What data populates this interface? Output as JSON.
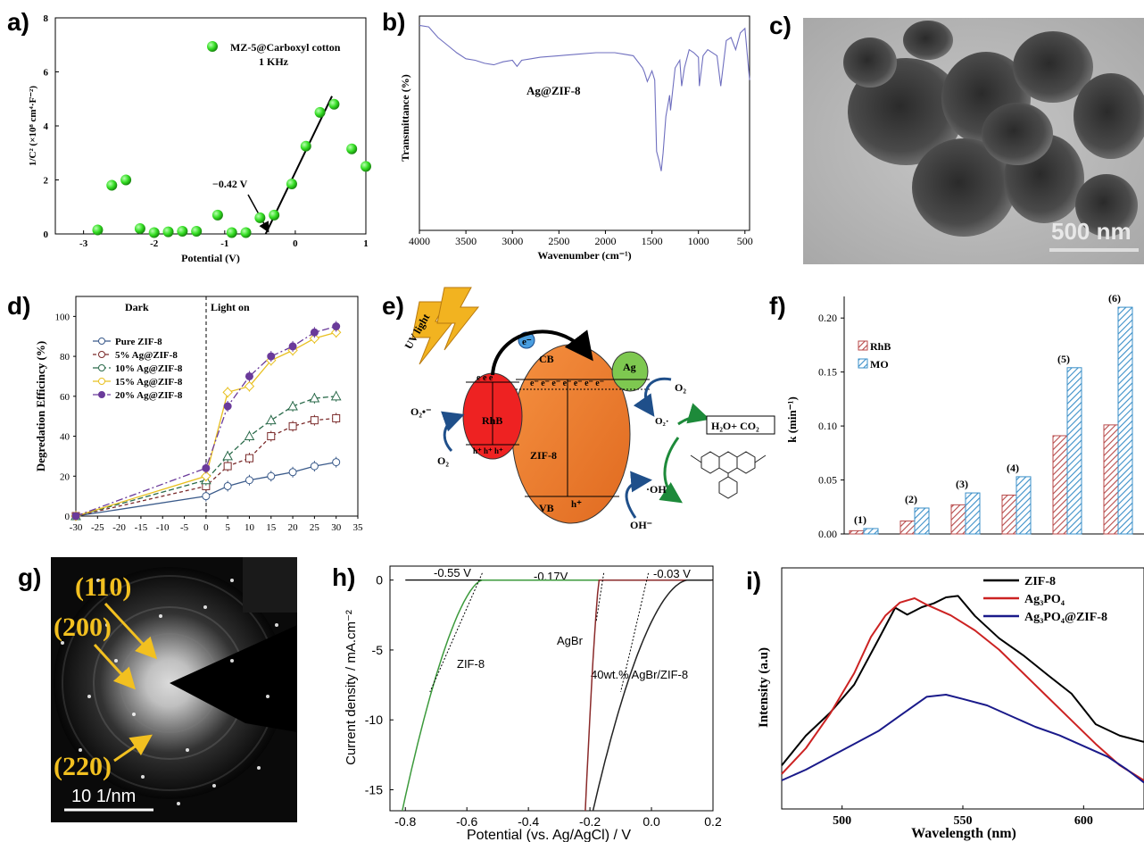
{
  "panel_labels": [
    "a)",
    "b)",
    "c)",
    "d)",
    "e)",
    "f)",
    "g)",
    "h)",
    "i)"
  ],
  "colors": {
    "green_marker": "#33dd22",
    "ftir_line": "#6f6fbf",
    "zif8_orange": "#ee7a30",
    "rhb_red": "#ee2222",
    "ag_green": "#7ec850",
    "uv_yellow": "#f2b320",
    "rhb_bar": "#b84a4a",
    "mo_bar": "#3a8fc8"
  },
  "chart_data": [
    {
      "id": "a",
      "type": "scatter",
      "xlabel": "Potential (V)",
      "ylabel": "1/C² (×10⁸ cm⁴·F⁻²)",
      "xlim": [
        -3.4,
        1
      ],
      "ylim": [
        0,
        8
      ],
      "x_ticks": [
        "-3",
        "-2",
        "-1",
        "0",
        "1"
      ],
      "y_ticks": [
        "0",
        "2",
        "4",
        "6",
        "8"
      ],
      "legend": [
        "MZ-5@Carboxyl cotton",
        "1 KHz"
      ],
      "annotation": "−0.42 V",
      "points": [
        [
          -2.8,
          0.15
        ],
        [
          -2.6,
          1.8
        ],
        [
          -2.4,
          2.0
        ],
        [
          -2.2,
          0.2
        ],
        [
          -2.0,
          0.05
        ],
        [
          -1.8,
          0.08
        ],
        [
          -1.6,
          0.1
        ],
        [
          -1.4,
          0.1
        ],
        [
          -1.1,
          0.7
        ],
        [
          -0.9,
          0.05
        ],
        [
          -0.7,
          0.05
        ],
        [
          -0.5,
          0.6
        ],
        [
          -0.3,
          0.7
        ],
        [
          -0.05,
          1.85
        ],
        [
          0.15,
          3.25
        ],
        [
          0.35,
          4.5
        ],
        [
          0.55,
          4.8
        ],
        [
          0.8,
          3.15
        ],
        [
          1.0,
          2.5
        ]
      ],
      "fit_line": [
        [
          -0.42,
          0
        ],
        [
          0.52,
          5.1
        ]
      ]
    },
    {
      "id": "b",
      "type": "line",
      "xlabel": "Wavenumber (cm⁻¹)",
      "ylabel": "Transmittance (%)",
      "xlim": [
        4000,
        450
      ],
      "x_ticks": [
        "4000",
        "3500",
        "3000",
        "2500",
        "2000",
        "1500",
        "1000",
        "500"
      ],
      "label": "Ag@ZIF-8",
      "x": [
        4000,
        3900,
        3800,
        3700,
        3600,
        3500,
        3400,
        3300,
        3200,
        3150,
        3100,
        3000,
        2950,
        2900,
        2800,
        2700,
        2500,
        2300,
        2100,
        2000,
        1900,
        1800,
        1700,
        1600,
        1580,
        1550,
        1500,
        1470,
        1450,
        1420,
        1400,
        1380,
        1350,
        1310,
        1300,
        1250,
        1200,
        1180,
        1150,
        1100,
        1050,
        1000,
        990,
        950,
        900,
        800,
        760,
        700,
        650,
        600,
        550,
        500,
        450
      ],
      "y": [
        98,
        97,
        90,
        85,
        80,
        76,
        75,
        73,
        72,
        73,
        74,
        75,
        71,
        75,
        76,
        77,
        78,
        79,
        80,
        80,
        80,
        79,
        78,
        70,
        67,
        61,
        68,
        62,
        15,
        8,
        2,
        14,
        38,
        52,
        42,
        70,
        75,
        58,
        70,
        82,
        80,
        77,
        58,
        78,
        82,
        78,
        58,
        88,
        90,
        82,
        93,
        96,
        62
      ]
    },
    {
      "id": "d",
      "type": "line",
      "xlabel": "",
      "ylabel": "Degredation Efficincy (%)",
      "xlim": [
        -30,
        35
      ],
      "ylim": [
        0,
        100
      ],
      "x_ticks": [
        "-30",
        "-25",
        "-20",
        "-15",
        "-10",
        "-5",
        "0",
        "5",
        "10",
        "15",
        "20",
        "25",
        "30",
        "35"
      ],
      "y_ticks": [
        "0",
        "20",
        "40",
        "60",
        "80",
        "100"
      ],
      "annotations": [
        "Dark",
        "Light on"
      ],
      "x": [
        -30,
        0,
        5,
        10,
        15,
        20,
        25,
        30
      ],
      "series": [
        {
          "name": "Pure ZIF-8",
          "color": "#3a5a8a",
          "marker": "circle-open",
          "values": [
            0,
            10,
            15,
            18,
            20,
            22,
            25,
            27
          ]
        },
        {
          "name": "5% Ag@ZIF-8",
          "color": "#7a2a2a",
          "marker": "square-open",
          "values": [
            0,
            15,
            25,
            29,
            40,
            45,
            48,
            49
          ]
        },
        {
          "name": "10% Ag@ZIF-8",
          "color": "#2a6a4a",
          "marker": "triangle-open",
          "values": [
            0,
            18,
            30,
            40,
            48,
            55,
            59,
            60
          ]
        },
        {
          "name": "15% Ag@ZIF-8",
          "color": "#e8c020",
          "marker": "diamond-open",
          "values": [
            0,
            20,
            62,
            65,
            78,
            83,
            89,
            92
          ]
        },
        {
          "name": "20% Ag@ZIF-8",
          "color": "#6a3a9a",
          "marker": "circle-filled",
          "values": [
            0,
            24,
            55,
            70,
            80,
            85,
            92,
            95
          ]
        }
      ]
    },
    {
      "id": "f",
      "type": "bar",
      "ylabel": "k (min⁻¹)",
      "ylim": [
        0,
        0.2
      ],
      "y_ticks": [
        "0.00",
        "0.05",
        "0.10",
        "0.15",
        "0.20"
      ],
      "categories": [
        "(1)",
        "(2)",
        "(3)",
        "(4)",
        "(5)",
        "(6)"
      ],
      "series": [
        {
          "name": "RhB",
          "values": [
            0.003,
            0.012,
            0.027,
            0.036,
            0.091,
            0.101
          ]
        },
        {
          "name": "MO",
          "values": [
            0.005,
            0.024,
            0.038,
            0.053,
            0.154,
            0.21
          ]
        }
      ]
    },
    {
      "id": "h",
      "type": "line",
      "xlabel": "Potential (vs. Ag/AgCl) / V",
      "ylabel": "Current density / mA.cm⁻²",
      "xlim": [
        -0.85,
        0.2
      ],
      "ylim": [
        -16.5,
        1
      ],
      "x_ticks": [
        "-0.8",
        "-0.6",
        "-0.4",
        "-0.2",
        "0.0",
        "0.2"
      ],
      "y_ticks": [
        "0",
        "-5",
        "-10",
        "-15"
      ],
      "annotations": [
        "-0.55 V",
        "-0.17V",
        "-0.03 V"
      ],
      "series": [
        {
          "name": "ZIF-8",
          "color": "#3c9a3c",
          "onset": -0.55
        },
        {
          "name": "AgBr",
          "color": "#8a2a2a",
          "onset": -0.17
        },
        {
          "name": "40wt.% AgBr/ZIF-8",
          "color": "#222222",
          "onset": -0.03
        }
      ]
    },
    {
      "id": "i",
      "type": "line",
      "xlabel": "Wavelength (nm)",
      "ylabel": "Intensity (a.u)",
      "xlim": [
        475,
        625
      ],
      "x_ticks": [
        "500",
        "550",
        "600"
      ],
      "series": [
        {
          "name": "ZIF-8",
          "color": "#000000",
          "x": [
            475,
            485,
            495,
            505,
            515,
            522,
            527,
            533,
            538,
            543,
            548,
            555,
            565,
            575,
            585,
            595,
            605,
            615,
            625
          ],
          "values": [
            0.12,
            0.25,
            0.38,
            0.48,
            0.72,
            0.85,
            0.82,
            0.87,
            0.86,
            0.92,
            0.9,
            0.82,
            0.72,
            0.62,
            0.56,
            0.44,
            0.32,
            0.26,
            0.22
          ]
        },
        {
          "name": "Ag₃PO₄",
          "color": "#cc2222",
          "x": [
            475,
            485,
            495,
            505,
            512,
            518,
            524,
            530,
            535,
            545,
            555,
            565,
            575,
            585,
            595,
            605,
            615,
            625
          ],
          "values": [
            0.08,
            0.2,
            0.36,
            0.55,
            0.72,
            0.82,
            0.88,
            0.9,
            0.87,
            0.82,
            0.75,
            0.66,
            0.55,
            0.44,
            0.33,
            0.22,
            0.12,
            0.05
          ]
        },
        {
          "name": "Ag₃PO₄@ZIF-8",
          "color": "#1a1a8a",
          "x": [
            475,
            485,
            495,
            505,
            515,
            525,
            535,
            543,
            550,
            560,
            570,
            580,
            590,
            600,
            610,
            618,
            625
          ],
          "values": [
            0.05,
            0.1,
            0.16,
            0.22,
            0.28,
            0.36,
            0.44,
            0.45,
            0.43,
            0.4,
            0.35,
            0.3,
            0.26,
            0.21,
            0.16,
            0.1,
            0.04
          ]
        }
      ]
    }
  ],
  "a_text": {
    "legend1": "MZ-5@Carboxyl cotton",
    "legend2": "1 KHz",
    "annotation": "−0.42 V",
    "xlabel": "Potential (V)",
    "ylabel": "1/C² (×10⁸ cm⁴·F⁻²)"
  },
  "b_text": {
    "label": "Ag@ZIF-8",
    "xlabel": "Wavenumber (cm⁻¹)",
    "ylabel": "Transmittance (%)"
  },
  "c_text": {
    "scalebar": "500 nm"
  },
  "d_text": {
    "dark": "Dark",
    "light": "Light on",
    "ylabel": "Degredation Efficincy (%)"
  },
  "e_text": {
    "uv": "UV light",
    "e_top": "e⁻",
    "cb": "CB",
    "vb": "VB",
    "zif8": "ZIF-8",
    "rhb": "RhB",
    "ag": "Ag",
    "o2_left_top": "O₂•⁻",
    "o2_left": "O₂",
    "o2_right": "O₂",
    "o2_right_rad": "O₂·",
    "oh_rad": "·OH",
    "oh_minus": "OH⁻",
    "products": "H₂O+ CO₂",
    "hplus": "h⁺",
    "electrons_row": "e⁻  e⁻  e⁻  e⁻  e⁻  e⁻  e⁻",
    "rhb_e": "e  e  e",
    "rhb_h": "h⁺ h⁺ h⁺"
  },
  "f_text": {
    "legend_rhb": "RhB",
    "legend_mo": "MO",
    "ylabel": "k (min⁻¹)"
  },
  "g_text": {
    "l110": "(110)",
    "l200": "(200)",
    "l220": "(220)",
    "scalebar": "10 1/nm"
  },
  "h_text": {
    "a1": "-0.55 V",
    "a2": "-0.17V",
    "a3": "-0.03 V",
    "s1": "ZIF-8",
    "s2": "AgBr",
    "s3": "40wt.% AgBr/ZIF-8",
    "xlabel": "Potential (vs. Ag/AgCl) / V",
    "ylabel": "Current density / mA.cm⁻²"
  },
  "i_text": {
    "l1": "ZIF-8",
    "l2": "Ag₃PO₄",
    "l3": "Ag₃PO₄@ZIF-8",
    "xlabel": "Wavelength (nm)",
    "ylabel": "Intensity (a.u)"
  }
}
